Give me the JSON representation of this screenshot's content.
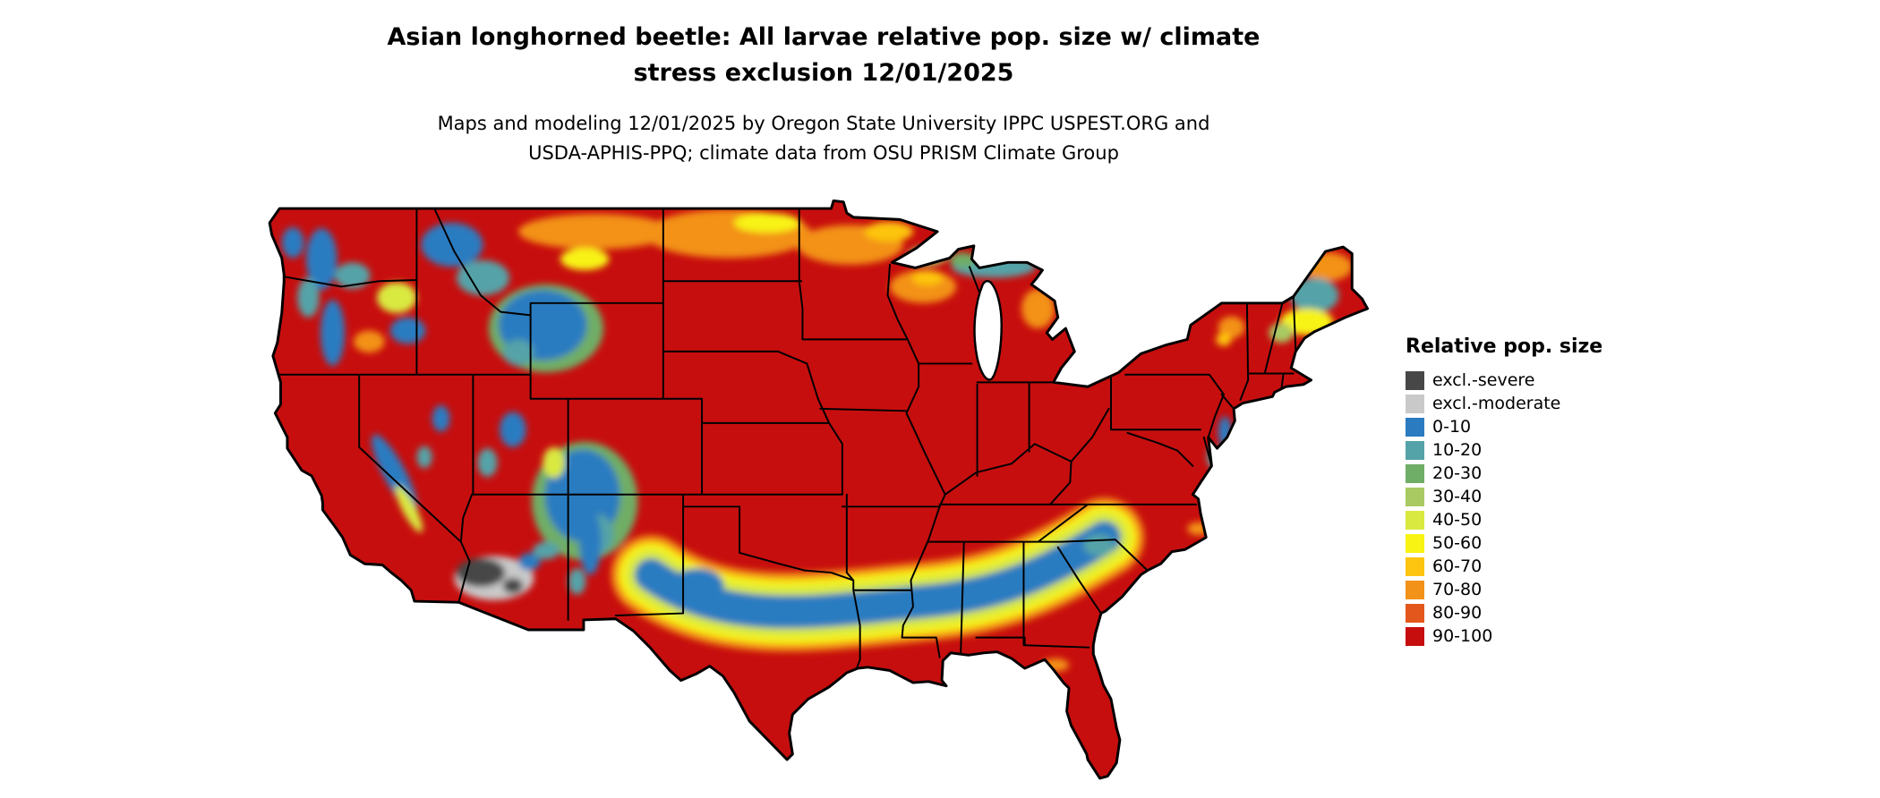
{
  "title": {
    "line1": "Asian longhorned beetle: All larvae relative pop. size w/ climate",
    "line2": "stress exclusion 12/01/2025"
  },
  "subtitle": {
    "line1": "Maps and modeling 12/01/2025 by Oregon State University IPPC USPEST.ORG and",
    "line2": "USDA-APHIS-PPQ; climate data from OSU PRISM Climate Group"
  },
  "map": {
    "description": "Contiguous United States choropleth raster of Asian longhorned beetle relative population size",
    "base_color": "#c70e0e",
    "border_color": "#000000",
    "water_color": "#ffffff"
  },
  "legend": {
    "title": "Relative pop. size",
    "items": [
      {
        "label": "excl.-severe",
        "color": "#474747"
      },
      {
        "label": "excl.-moderate",
        "color": "#c9c9c9"
      },
      {
        "label": "0-10",
        "color": "#2b7bc1"
      },
      {
        "label": "10-20",
        "color": "#54a3a8"
      },
      {
        "label": "20-30",
        "color": "#6fae66"
      },
      {
        "label": "30-40",
        "color": "#a9c963"
      },
      {
        "label": "40-50",
        "color": "#d9e93f"
      },
      {
        "label": "50-60",
        "color": "#f8f312"
      },
      {
        "label": "60-70",
        "color": "#fdc410"
      },
      {
        "label": "70-80",
        "color": "#f39219"
      },
      {
        "label": "80-90",
        "color": "#e4571c"
      },
      {
        "label": "90-100",
        "color": "#c70e0e"
      }
    ]
  }
}
